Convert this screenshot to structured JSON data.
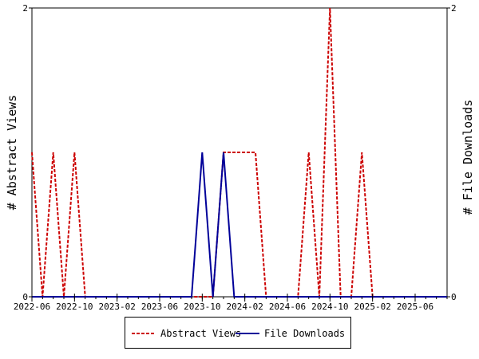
{
  "chart_data": {
    "type": "line",
    "x_ticks": [
      "2022-06",
      "2022-10",
      "2023-02",
      "2023-06",
      "2023-10",
      "2024-02",
      "2024-06",
      "2024-10",
      "2025-02",
      "2025-06"
    ],
    "x_range": [
      "2022-06",
      "2025-09"
    ],
    "y_left": {
      "label": "# Abstract Views",
      "range": [
        0,
        2
      ],
      "ticks": [
        "0",
        "2"
      ]
    },
    "y_right": {
      "label": "# File Downloads",
      "range": [
        0,
        2
      ],
      "ticks": [
        "0",
        "2"
      ]
    },
    "grid": false,
    "legend": "bottom",
    "series": [
      {
        "name": "Abstract Views",
        "axis": "left",
        "color": "#cc0000",
        "style": "dashed",
        "points": [
          [
            "2022-06",
            1
          ],
          [
            "2022-07",
            0
          ],
          [
            "2022-08",
            1
          ],
          [
            "2022-09",
            0
          ],
          [
            "2022-10",
            1
          ],
          [
            "2022-11",
            0
          ],
          [
            "2023-01",
            0
          ],
          [
            "2023-03",
            0
          ],
          [
            "2023-05",
            0
          ],
          [
            "2023-07",
            0
          ],
          [
            "2023-09",
            0
          ],
          [
            "2023-11",
            0
          ],
          [
            "2023-12",
            1
          ],
          [
            "2024-01",
            1
          ],
          [
            "2024-02",
            1
          ],
          [
            "2024-03",
            1
          ],
          [
            "2024-04",
            0
          ],
          [
            "2024-06",
            0
          ],
          [
            "2024-07",
            0
          ],
          [
            "2024-08",
            1
          ],
          [
            "2024-09",
            0
          ],
          [
            "2024-10",
            2
          ],
          [
            "2024-11",
            0
          ],
          [
            "2024-12",
            0
          ],
          [
            "2025-01",
            1
          ],
          [
            "2025-02",
            0
          ],
          [
            "2025-04",
            0
          ],
          [
            "2025-06",
            0
          ],
          [
            "2025-09",
            0
          ]
        ]
      },
      {
        "name": "File Downloads",
        "axis": "right",
        "color": "#000099",
        "style": "solid",
        "points": [
          [
            "2022-06",
            0
          ],
          [
            "2022-08",
            0
          ],
          [
            "2022-10",
            0
          ],
          [
            "2022-12",
            0
          ],
          [
            "2023-02",
            0
          ],
          [
            "2023-04",
            0
          ],
          [
            "2023-06",
            0
          ],
          [
            "2023-08",
            0
          ],
          [
            "2023-09",
            0
          ],
          [
            "2023-10",
            1
          ],
          [
            "2023-11",
            0
          ],
          [
            "2023-12",
            1
          ],
          [
            "2024-01",
            0
          ],
          [
            "2024-03",
            0
          ],
          [
            "2024-05",
            0
          ],
          [
            "2024-07",
            0
          ],
          [
            "2024-09",
            0
          ],
          [
            "2024-11",
            0
          ],
          [
            "2025-01",
            0
          ],
          [
            "2025-03",
            0
          ],
          [
            "2025-05",
            0
          ],
          [
            "2025-07",
            0
          ],
          [
            "2025-09",
            0
          ]
        ]
      }
    ]
  }
}
